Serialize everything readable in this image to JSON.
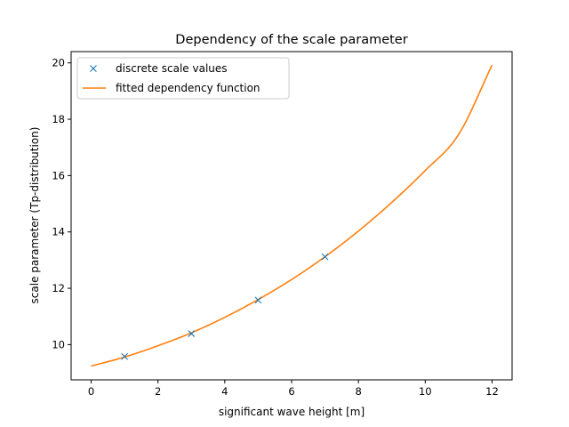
{
  "chart_data": {
    "type": "line",
    "title": "Dependency of the scale parameter",
    "xlabel": "significant wave height [m]",
    "ylabel": "scale parameter (Tp-distribution)",
    "xlim": [
      -0.6,
      12.6
    ],
    "ylim": [
      8.75,
      20.4
    ],
    "xticks": [
      0,
      2,
      4,
      6,
      8,
      10,
      12
    ],
    "yticks": [
      10,
      12,
      14,
      16,
      18,
      20
    ],
    "grid": false,
    "legend_position": "top-left",
    "series": [
      {
        "name": "discrete scale values",
        "kind": "markers",
        "marker": "x",
        "color": "#1f77b4",
        "x": [
          1,
          3,
          5,
          7
        ],
        "y": [
          9.58,
          10.39,
          11.58,
          13.12
        ]
      },
      {
        "name": "fitted dependency function",
        "kind": "line",
        "color": "#ff7f0e",
        "x": [
          0,
          1,
          2,
          3,
          4,
          5,
          6,
          7,
          8,
          9,
          10,
          11,
          12
        ],
        "y": [
          9.24,
          9.56,
          9.96,
          10.42,
          10.97,
          11.6,
          12.31,
          13.12,
          14.03,
          15.05,
          16.18,
          17.46,
          19.92
        ]
      }
    ]
  }
}
